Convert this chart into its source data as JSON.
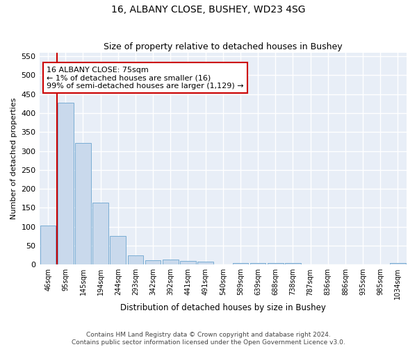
{
  "title": "16, ALBANY CLOSE, BUSHEY, WD23 4SG",
  "subtitle": "Size of property relative to detached houses in Bushey",
  "xlabel": "Distribution of detached houses by size in Bushey",
  "ylabel": "Number of detached properties",
  "categories": [
    "46sqm",
    "95sqm",
    "145sqm",
    "194sqm",
    "244sqm",
    "293sqm",
    "342sqm",
    "392sqm",
    "441sqm",
    "491sqm",
    "540sqm",
    "589sqm",
    "639sqm",
    "688sqm",
    "738sqm",
    "787sqm",
    "836sqm",
    "886sqm",
    "935sqm",
    "985sqm",
    "1034sqm"
  ],
  "values": [
    103,
    428,
    321,
    163,
    76,
    25,
    12,
    13,
    10,
    8,
    0,
    5,
    5,
    5,
    5,
    0,
    0,
    0,
    0,
    0,
    5
  ],
  "bar_color": "#c9d9ec",
  "bar_edge_color": "#7aadd4",
  "annotation_box_text": "16 ALBANY CLOSE: 75sqm\n← 1% of detached houses are smaller (16)\n99% of semi-detached houses are larger (1,129) →",
  "marker_line_color": "#cc0000",
  "ylim": [
    0,
    560
  ],
  "yticks": [
    0,
    50,
    100,
    150,
    200,
    250,
    300,
    350,
    400,
    450,
    500,
    550
  ],
  "background_color": "#e8eef7",
  "grid_color": "#ffffff",
  "fig_background": "#ffffff",
  "footer_line1": "Contains HM Land Registry data © Crown copyright and database right 2024.",
  "footer_line2": "Contains public sector information licensed under the Open Government Licence v3.0."
}
